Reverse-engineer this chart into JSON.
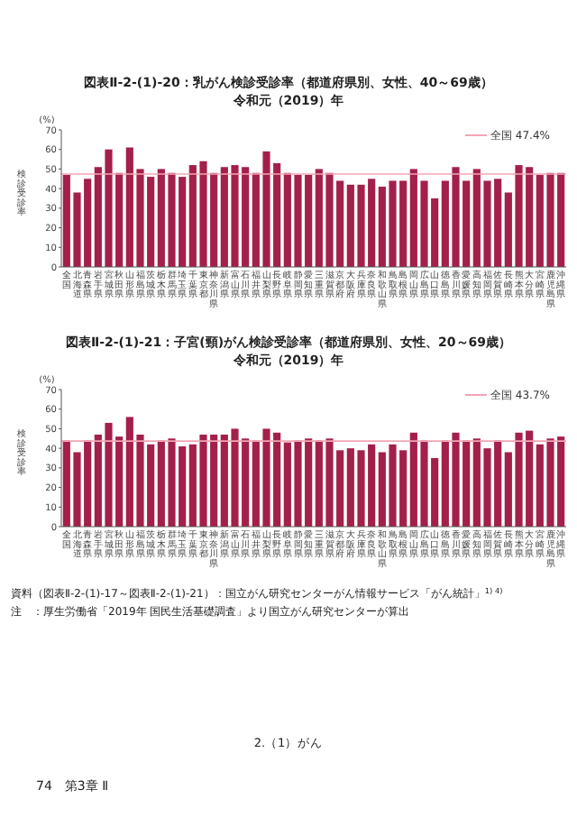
{
  "chart_data": [
    {
      "type": "bar",
      "title": "図表Ⅱ-2-(1)-20：乳がん検診受診率（都道府県別、女性、40～69歳）",
      "subtitle": "令和元（2019）年",
      "ylabel": "検診受診率",
      "annotations": [
        "(%)"
      ],
      "categories": [
        "全国",
        "北海道",
        "青森県",
        "岩手県",
        "宮城県",
        "秋田県",
        "山形県",
        "福島県",
        "茨城県",
        "栃木県",
        "群馬県",
        "埼玉県",
        "千葉県",
        "東京都",
        "神奈川県",
        "新潟県",
        "富山県",
        "石川県",
        "福井県",
        "山梨県",
        "長野県",
        "岐阜県",
        "静岡県",
        "愛知県",
        "三重県",
        "滋賀県",
        "京都府",
        "大阪府",
        "兵庫県",
        "奈良県",
        "和歌山県",
        "鳥取県",
        "島根県",
        "岡山県",
        "広島県",
        "山口県",
        "徳島県",
        "香川県",
        "愛媛県",
        "高知県",
        "福岡県",
        "佐賀県",
        "長崎県",
        "熊本県",
        "大分県",
        "宮崎県",
        "鹿児島県",
        "沖縄県"
      ],
      "values": [
        47,
        38,
        45,
        51,
        60,
        48,
        61,
        50,
        46,
        50,
        48,
        46,
        52,
        54,
        48,
        51,
        52,
        51,
        48,
        59,
        53,
        48,
        47,
        47,
        50,
        48,
        44,
        42,
        42,
        45,
        41,
        44,
        44,
        50,
        44,
        35,
        44,
        51,
        44,
        50,
        44,
        45,
        38,
        52,
        51,
        47,
        48,
        48
      ],
      "color": "#a3204a",
      "ylim": [
        0,
        70
      ],
      "yticks": [
        0,
        10,
        20,
        30,
        40,
        50,
        60,
        70
      ],
      "ref_lines": [
        {
          "axis": "y",
          "value": 47.4,
          "label": "全国 47.4%",
          "color": "#f2a6b6"
        }
      ]
    },
    {
      "type": "bar",
      "title": "図表Ⅱ-2-(1)-21：子宮(頸)がん検診受診率（都道府県別、女性、20～69歳）",
      "subtitle": "令和元（2019）年",
      "ylabel": "検診受診率",
      "annotations": [
        "(%)",
        "資料（図表Ⅱ-2-(1)-17～図表Ⅱ-2-(1)-21）：国立がん研究センターがん情報サービス「がん統計」$^{1) 4)}$",
        "注　：厚生労働省「2019年 国民生活基礎調査」より国立がん研究センターが算出",
        "2.（1）がん",
        "74　第3章 Ⅱ"
      ],
      "categories": [
        "全国",
        "北海道",
        "青森県",
        "岩手県",
        "宮城県",
        "秋田県",
        "山形県",
        "福島県",
        "茨城県",
        "栃木県",
        "群馬県",
        "埼玉県",
        "千葉県",
        "東京都",
        "神奈川県",
        "新潟県",
        "富山県",
        "石川県",
        "福井県",
        "山梨県",
        "長野県",
        "岐阜県",
        "静岡県",
        "愛知県",
        "三重県",
        "滋賀県",
        "京都府",
        "大阪府",
        "兵庫県",
        "奈良県",
        "和歌山県",
        "鳥取県",
        "島根県",
        "岡山県",
        "広島県",
        "山口県",
        "徳島県",
        "香川県",
        "愛媛県",
        "高知県",
        "福岡県",
        "佐賀県",
        "長崎県",
        "熊本県",
        "大分県",
        "宮崎県",
        "鹿児島県",
        "沖縄県"
      ],
      "values": [
        44,
        38,
        44,
        47,
        53,
        46,
        56,
        47,
        42,
        44,
        45,
        41,
        42,
        47,
        47,
        47,
        50,
        45,
        44,
        50,
        48,
        43,
        44,
        45,
        44,
        45,
        39,
        40,
        39,
        42,
        38,
        42,
        39,
        48,
        44,
        35,
        44,
        48,
        44,
        45,
        40,
        44,
        38,
        48,
        49,
        42,
        45,
        46
      ],
      "color": "#a3204a",
      "ylim": [
        0,
        70
      ],
      "yticks": [
        0,
        10,
        20,
        30,
        40,
        50,
        60,
        70
      ],
      "ref_lines": [
        {
          "axis": "y",
          "value": 43.7,
          "label": "全国 43.7%",
          "color": "#f2a6b6"
        }
      ]
    }
  ]
}
